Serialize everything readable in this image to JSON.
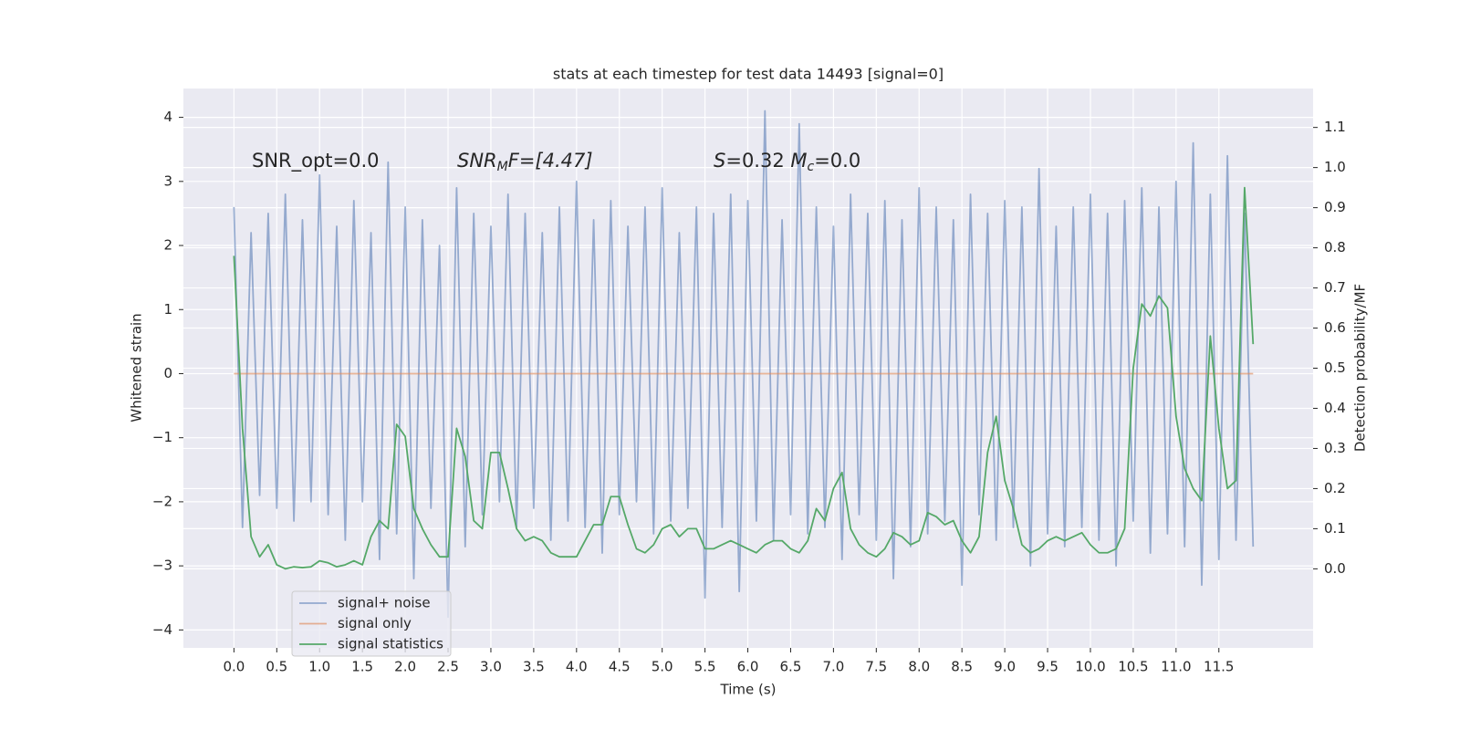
{
  "chart_data": {
    "type": "line",
    "title": "stats at each timestep for test data 14493 [signal=0]",
    "xlabel": "Time (s)",
    "ylabel": "Whitened strain",
    "y2label": "Detection probability/MF",
    "annotations": [
      [
        "SNR_opt=0.0"
      ],
      [
        "SNR",
        "M",
        "F=[4.47]"
      ],
      [
        "S",
        "=0.32   ",
        "M",
        "c",
        "=0.0"
      ]
    ],
    "x": [
      0,
      0.1,
      0.2,
      0.3,
      0.4,
      0.5,
      0.6,
      0.7,
      0.8,
      0.9,
      1,
      1.1,
      1.2,
      1.3,
      1.4,
      1.5,
      1.6,
      1.7,
      1.8,
      1.9,
      2,
      2.1,
      2.2,
      2.3,
      2.4,
      2.5,
      2.6,
      2.7,
      2.8,
      2.9,
      3,
      3.1,
      3.2,
      3.3,
      3.4,
      3.5,
      3.6,
      3.7,
      3.8,
      3.9,
      4,
      4.1,
      4.2,
      4.3,
      4.4,
      4.5,
      4.6,
      4.7,
      4.8,
      4.9,
      5,
      5.1,
      5.2,
      5.3,
      5.4,
      5.5,
      5.6,
      5.7,
      5.8,
      5.9,
      6,
      6.1,
      6.2,
      6.3,
      6.4,
      6.5,
      6.6,
      6.7,
      6.8,
      6.9,
      7,
      7.1,
      7.2,
      7.3,
      7.4,
      7.5,
      7.6,
      7.7,
      7.8,
      7.9,
      8,
      8.1,
      8.2,
      8.3,
      8.4,
      8.5,
      8.6,
      8.7,
      8.8,
      8.9,
      9,
      9.1,
      9.2,
      9.3,
      9.4,
      9.5,
      9.6,
      9.7,
      9.8,
      9.9,
      10,
      10.1,
      10.2,
      10.3,
      10.4,
      10.5,
      10.6,
      10.7,
      10.8,
      10.9,
      11,
      11.1,
      11.2,
      11.3,
      11.4,
      11.5,
      11.6,
      11.7,
      11.8,
      11.9
    ],
    "series": [
      {
        "name": "signal+ noise",
        "color": "#4c72b0",
        "opacity": 0.55,
        "axis": "y",
        "values": [
          2.6,
          -2.4,
          2.2,
          -1.9,
          2.5,
          -2.1,
          2.8,
          -2.3,
          2.4,
          -2.0,
          3.1,
          -2.2,
          2.3,
          -2.6,
          2.7,
          -2.0,
          2.2,
          -2.9,
          3.3,
          -2.5,
          2.6,
          -3.2,
          2.4,
          -2.1,
          2.0,
          -3.8,
          2.9,
          -2.7,
          2.5,
          -2.2,
          2.3,
          -2.0,
          2.8,
          -2.4,
          2.5,
          -2.1,
          2.2,
          -2.6,
          2.6,
          -2.3,
          3.0,
          -2.4,
          2.4,
          -2.8,
          2.7,
          -2.2,
          2.3,
          -2.0,
          2.6,
          -2.5,
          2.9,
          -2.3,
          2.2,
          -2.1,
          2.6,
          -3.5,
          2.5,
          -2.4,
          2.8,
          -3.4,
          2.7,
          -2.3,
          4.1,
          -2.6,
          2.4,
          -2.2,
          3.9,
          -2.5,
          2.6,
          -2.4,
          2.3,
          -2.9,
          2.8,
          -2.2,
          2.5,
          -2.6,
          2.7,
          -3.2,
          2.4,
          -2.7,
          2.9,
          -2.5,
          2.6,
          -2.3,
          2.4,
          -3.3,
          2.8,
          -2.2,
          2.5,
          -2.6,
          2.7,
          -2.4,
          2.6,
          -3.0,
          3.2,
          -2.5,
          2.3,
          -2.7,
          2.6,
          -2.4,
          2.8,
          -2.6,
          2.5,
          -3.0,
          2.7,
          -2.3,
          2.9,
          -2.8,
          2.6,
          -2.5,
          3.0,
          -2.7,
          3.6,
          -3.3,
          2.8,
          -2.9,
          3.4,
          -2.6,
          2.5,
          -2.7
        ]
      },
      {
        "name": "signal only",
        "color": "#dd8452",
        "opacity": 0.6,
        "axis": "y",
        "values": [
          0,
          0,
          0,
          0,
          0,
          0,
          0,
          0,
          0,
          0,
          0,
          0,
          0,
          0,
          0,
          0,
          0,
          0,
          0,
          0,
          0,
          0,
          0,
          0,
          0,
          0,
          0,
          0,
          0,
          0,
          0,
          0,
          0,
          0,
          0,
          0,
          0,
          0,
          0,
          0,
          0,
          0,
          0,
          0,
          0,
          0,
          0,
          0,
          0,
          0,
          0,
          0,
          0,
          0,
          0,
          0,
          0,
          0,
          0,
          0,
          0,
          0,
          0,
          0,
          0,
          0,
          0,
          0,
          0,
          0,
          0,
          0,
          0,
          0,
          0,
          0,
          0,
          0,
          0,
          0,
          0,
          0,
          0,
          0,
          0,
          0,
          0,
          0,
          0,
          0,
          0,
          0,
          0,
          0,
          0,
          0,
          0,
          0,
          0,
          0,
          0,
          0,
          0,
          0,
          0,
          0,
          0,
          0,
          0,
          0,
          0,
          0,
          0,
          0,
          0,
          0,
          0,
          0,
          0,
          0
        ]
      },
      {
        "name": "signal statistics",
        "color": "#55a868",
        "opacity": 1,
        "axis": "y2",
        "values": [
          0.78,
          0.35,
          0.08,
          0.03,
          0.06,
          0.01,
          0.0,
          0.005,
          0.003,
          0.005,
          0.02,
          0.015,
          0.005,
          0.01,
          0.02,
          0.01,
          0.08,
          0.12,
          0.1,
          0.36,
          0.33,
          0.15,
          0.1,
          0.06,
          0.03,
          0.03,
          0.35,
          0.28,
          0.12,
          0.1,
          0.29,
          0.29,
          0.2,
          0.1,
          0.07,
          0.08,
          0.07,
          0.04,
          0.03,
          0.03,
          0.03,
          0.07,
          0.11,
          0.11,
          0.18,
          0.18,
          0.11,
          0.05,
          0.04,
          0.06,
          0.1,
          0.11,
          0.08,
          0.1,
          0.1,
          0.05,
          0.05,
          0.06,
          0.07,
          0.06,
          0.05,
          0.04,
          0.06,
          0.07,
          0.07,
          0.05,
          0.04,
          0.07,
          0.15,
          0.12,
          0.2,
          0.24,
          0.1,
          0.06,
          0.04,
          0.03,
          0.05,
          0.09,
          0.08,
          0.06,
          0.07,
          0.14,
          0.13,
          0.11,
          0.12,
          0.07,
          0.04,
          0.08,
          0.29,
          0.38,
          0.22,
          0.15,
          0.06,
          0.04,
          0.05,
          0.07,
          0.08,
          0.07,
          0.08,
          0.09,
          0.06,
          0.04,
          0.04,
          0.05,
          0.1,
          0.5,
          0.66,
          0.63,
          0.68,
          0.65,
          0.38,
          0.25,
          0.2,
          0.17,
          0.58,
          0.35,
          0.2,
          0.22,
          0.95,
          0.56
        ]
      }
    ],
    "xlim": [
      -0.59,
      12.6
    ],
    "xticks": [
      {
        "value": 0,
        "label": "0.0"
      },
      0.5,
      {
        "value": 1,
        "label": "1.0"
      },
      1.5,
      {
        "value": 2,
        "label": "2.0"
      },
      2.5,
      {
        "value": 3,
        "label": "3.0"
      },
      3.5,
      {
        "value": 4,
        "label": "4.0"
      },
      4.5,
      {
        "value": 5,
        "label": "5.0"
      },
      5.5,
      {
        "value": 6,
        "label": "6.0"
      },
      6.5,
      {
        "value": 7,
        "label": "7.0"
      },
      7.5,
      {
        "value": 8,
        "label": "8.0"
      },
      8.5,
      {
        "value": 9,
        "label": "9.0"
      },
      9.5,
      {
        "value": 10,
        "label": "10.0"
      },
      10.5,
      {
        "value": 11,
        "label": "11.0"
      },
      11.5
    ],
    "ylim": [
      -4.28,
      4.45
    ],
    "yticks": [
      {
        "value": -4,
        "label": "−4"
      },
      {
        "value": -3,
        "label": "−3"
      },
      {
        "value": -2,
        "label": "−2"
      },
      {
        "value": -1,
        "label": "−1"
      },
      0,
      1,
      2,
      3,
      4
    ],
    "y2lim": [
      -0.197,
      1.197
    ],
    "y2ticks": [
      {
        "value": 0,
        "label": "0.0"
      },
      0.1,
      0.2,
      0.3,
      0.4,
      0.5,
      0.6,
      0.7,
      0.8,
      0.9,
      {
        "value": 1,
        "label": "1.0"
      },
      1.1
    ],
    "grid": true,
    "legend": "lower left"
  }
}
